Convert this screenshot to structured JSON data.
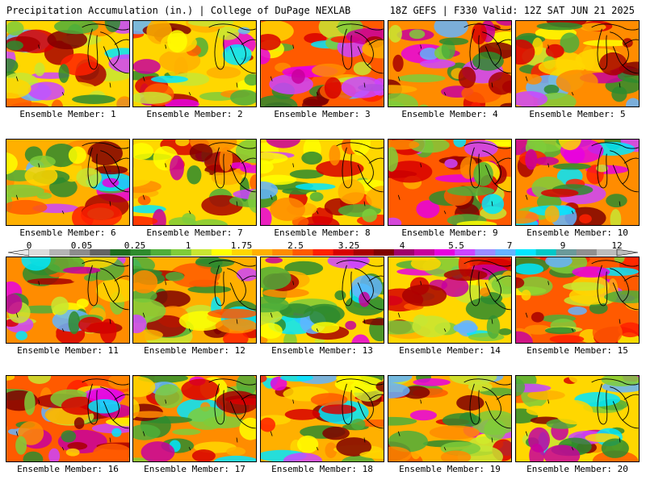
{
  "header": {
    "title": "Precipitation Accumulation (in.) | College of DuPage NEXLAB",
    "run_info": "18Z GEFS | F330 Valid: 12Z SAT JUN 21 2025"
  },
  "panels": [
    {
      "label": "Ensemble Member: 1"
    },
    {
      "label": "Ensemble Member: 2"
    },
    {
      "label": "Ensemble Member: 3"
    },
    {
      "label": "Ensemble Member: 4"
    },
    {
      "label": "Ensemble Member: 5"
    },
    {
      "label": "Ensemble Member: 6"
    },
    {
      "label": "Ensemble Member: 7"
    },
    {
      "label": "Ensemble Member: 8"
    },
    {
      "label": "Ensemble Member: 9"
    },
    {
      "label": "Ensemble Member: 10"
    },
    {
      "label": "Ensemble Member: 11"
    },
    {
      "label": "Ensemble Member: 12"
    },
    {
      "label": "Ensemble Member: 13"
    },
    {
      "label": "Ensemble Member: 14"
    },
    {
      "label": "Ensemble Member: 15"
    },
    {
      "label": "Ensemble Member: 16"
    },
    {
      "label": "Ensemble Member: 17"
    },
    {
      "label": "Ensemble Member: 18"
    },
    {
      "label": "Ensemble Member: 19"
    },
    {
      "label": "Ensemble Member: 20"
    }
  ],
  "legend": {
    "tick_labels": [
      "0",
      "0.05",
      "0.25",
      "1",
      "1.75",
      "2.5",
      "3.25",
      "4",
      "5.5",
      "7",
      "9",
      "12"
    ],
    "colors": [
      "#dcdcdc",
      "#b4b4b4",
      "#8c8c8c",
      "#646464",
      "#1e6e1e",
      "#2e8b2e",
      "#4fae3a",
      "#7fcc3a",
      "#c8e632",
      "#ffff00",
      "#ffd700",
      "#ffb000",
      "#ff8c00",
      "#ff5a00",
      "#ff2000",
      "#d80000",
      "#a80000",
      "#800000",
      "#a0006a",
      "#c8009c",
      "#e800e0",
      "#cc44ff",
      "#9a8cff",
      "#64b4ff",
      "#00e6ff",
      "#00c8c8",
      "#6a9a9a",
      "#909090",
      "#bcbcbc"
    ]
  }
}
